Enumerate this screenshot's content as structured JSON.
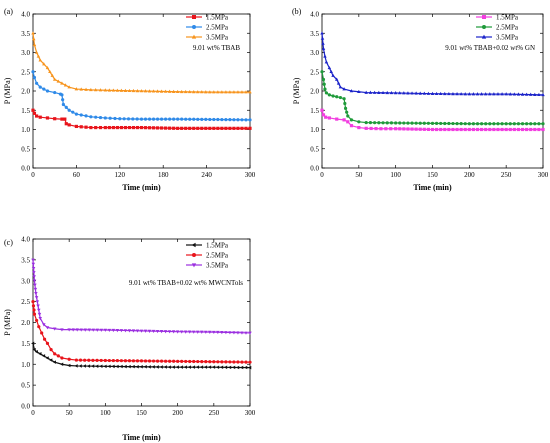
{
  "chart_data": [
    {
      "type": "line",
      "panel_label": "(a)",
      "annotation": "9.01 wt% TBAB",
      "xlabel": "Time (min)",
      "ylabel": "P (MPa)",
      "xlim": [
        0,
        300
      ],
      "ylim": [
        0,
        4.0
      ],
      "xticks": [
        "0",
        "60",
        "120",
        "180",
        "240",
        "300"
      ],
      "yticks": [
        "0.0",
        "0.5",
        "1.0",
        "1.5",
        "2.0",
        "2.5",
        "3.0",
        "3.5",
        "4.0"
      ],
      "legend_position": "top-right",
      "series": [
        {
          "name": "1.5MPa",
          "color": "#e8141b",
          "marker": "square",
          "x": [
            0,
            2,
            5,
            10,
            20,
            30,
            40,
            44,
            46,
            50,
            60,
            80,
            100,
            150,
            200,
            250,
            300
          ],
          "y": [
            1.5,
            1.42,
            1.35,
            1.32,
            1.3,
            1.28,
            1.27,
            1.27,
            1.15,
            1.12,
            1.08,
            1.05,
            1.05,
            1.05,
            1.03,
            1.03,
            1.03
          ]
        },
        {
          "name": "2.5MPa",
          "color": "#2f8ae8",
          "marker": "circle",
          "x": [
            0,
            2,
            5,
            10,
            20,
            30,
            38,
            40,
            42,
            50,
            60,
            80,
            100,
            120,
            150,
            200,
            250,
            300
          ],
          "y": [
            2.5,
            2.35,
            2.2,
            2.1,
            2.0,
            1.96,
            1.92,
            1.9,
            1.65,
            1.5,
            1.4,
            1.33,
            1.3,
            1.28,
            1.27,
            1.27,
            1.26,
            1.25
          ]
        },
        {
          "name": "3.5MPa",
          "color": "#f7941d",
          "marker": "triangle",
          "x": [
            0,
            2,
            5,
            10,
            15,
            20,
            30,
            40,
            50,
            60,
            80,
            100,
            150,
            200,
            250,
            300
          ],
          "y": [
            3.5,
            3.2,
            3.0,
            2.8,
            2.7,
            2.6,
            2.3,
            2.2,
            2.1,
            2.05,
            2.03,
            2.02,
            2.0,
            1.98,
            1.97,
            1.97
          ]
        }
      ]
    },
    {
      "type": "line",
      "panel_label": "(b)",
      "annotation": "9.01 wt% TBAB+0.02 wt% GN",
      "xlabel": "Time (min)",
      "ylabel": "P (MPa)",
      "xlim": [
        0,
        300
      ],
      "ylim": [
        0,
        4.0
      ],
      "xticks": [
        "0",
        "50",
        "100",
        "150",
        "200",
        "250",
        "300"
      ],
      "yticks": [
        "0.0",
        "0.5",
        "1.0",
        "1.5",
        "2.0",
        "2.5",
        "3.0",
        "3.5",
        "4.0"
      ],
      "legend_position": "top-right",
      "series": [
        {
          "name": "1.5MPa",
          "color": "#f23ee0",
          "marker": "square",
          "x": [
            0,
            2,
            5,
            10,
            20,
            30,
            35,
            40,
            50,
            60,
            80,
            100,
            150,
            200,
            250,
            300
          ],
          "y": [
            1.5,
            1.38,
            1.32,
            1.3,
            1.27,
            1.25,
            1.2,
            1.1,
            1.05,
            1.03,
            1.02,
            1.02,
            1.0,
            1.0,
            1.0,
            1.0
          ]
        },
        {
          "name": "2.5MPa",
          "color": "#1f9a3a",
          "marker": "circle",
          "x": [
            0,
            2,
            4,
            6,
            10,
            15,
            20,
            25,
            30,
            32,
            35,
            40,
            50,
            60,
            100,
            150,
            200,
            250,
            300
          ],
          "y": [
            2.5,
            2.3,
            2.05,
            1.95,
            1.9,
            1.87,
            1.85,
            1.83,
            1.8,
            1.55,
            1.35,
            1.25,
            1.2,
            1.18,
            1.17,
            1.16,
            1.15,
            1.15,
            1.15
          ]
        },
        {
          "name": "3.5MPa",
          "color": "#1b23c9",
          "marker": "triangle",
          "x": [
            0,
            2,
            4,
            6,
            10,
            15,
            20,
            25,
            30,
            40,
            50,
            60,
            100,
            150,
            200,
            250,
            300
          ],
          "y": [
            3.5,
            3.1,
            2.9,
            2.75,
            2.6,
            2.4,
            2.3,
            2.1,
            2.05,
            2.0,
            1.98,
            1.96,
            1.95,
            1.93,
            1.92,
            1.92,
            1.9
          ]
        }
      ]
    },
    {
      "type": "line",
      "panel_label": "(c)",
      "annotation": "9.01 wt% TBAB+0.02 wt% MWCNTols",
      "xlabel": "Time (min)",
      "ylabel": "P (MPa)",
      "xlim": [
        0,
        300
      ],
      "ylim": [
        0,
        4.0
      ],
      "xticks": [
        "0",
        "50",
        "100",
        "150",
        "200",
        "250",
        "300"
      ],
      "yticks": [
        "0.0",
        "0.5",
        "1.0",
        "1.5",
        "2.0",
        "2.5",
        "3.0",
        "3.5",
        "4.0"
      ],
      "legend_position": "top-right",
      "series": [
        {
          "name": "1.5MPa",
          "color": "#111111",
          "marker": "triangle-left",
          "x": [
            0,
            2,
            5,
            10,
            15,
            20,
            30,
            40,
            50,
            60,
            100,
            150,
            200,
            250,
            300
          ],
          "y": [
            1.5,
            1.35,
            1.3,
            1.25,
            1.2,
            1.15,
            1.05,
            1.0,
            0.97,
            0.96,
            0.95,
            0.94,
            0.93,
            0.93,
            0.92
          ]
        },
        {
          "name": "2.5MPa",
          "color": "#e8141b",
          "marker": "circle",
          "x": [
            0,
            2,
            5,
            8,
            12,
            16,
            20,
            25,
            30,
            40,
            50,
            60,
            100,
            150,
            200,
            250,
            300
          ],
          "y": [
            2.5,
            2.2,
            2.05,
            1.9,
            1.75,
            1.6,
            1.5,
            1.35,
            1.25,
            1.15,
            1.12,
            1.1,
            1.09,
            1.08,
            1.07,
            1.06,
            1.05
          ]
        },
        {
          "name": "3.5MPa",
          "color": "#9b2fe0",
          "marker": "triangle-down",
          "x": [
            0,
            2,
            4,
            6,
            8,
            10,
            15,
            20,
            30,
            40,
            50,
            100,
            150,
            200,
            250,
            300
          ],
          "y": [
            3.5,
            3.0,
            2.7,
            2.5,
            2.3,
            2.1,
            1.95,
            1.88,
            1.85,
            1.83,
            1.83,
            1.82,
            1.8,
            1.78,
            1.77,
            1.75
          ]
        }
      ]
    }
  ]
}
